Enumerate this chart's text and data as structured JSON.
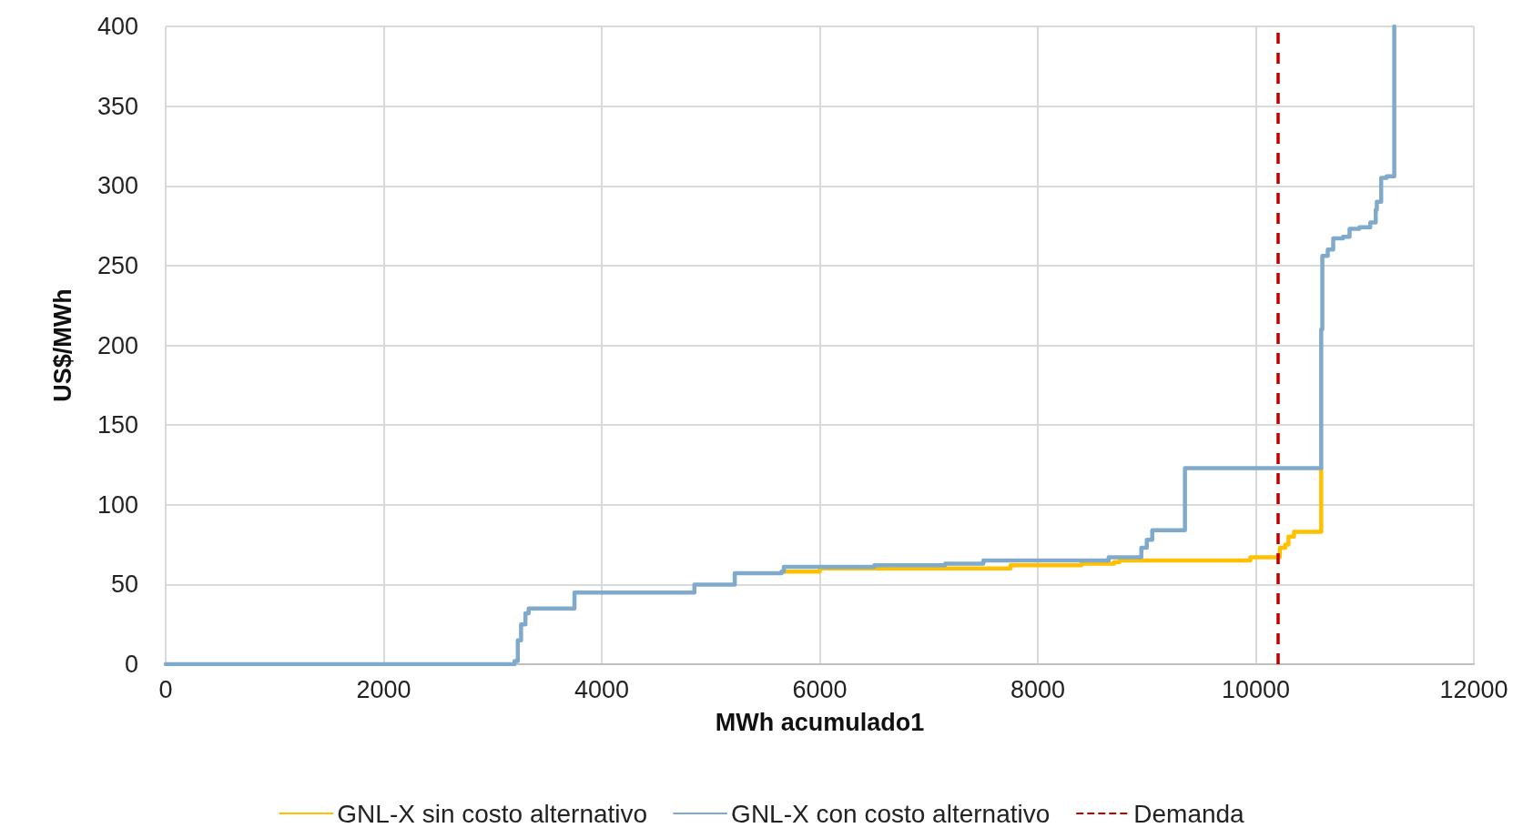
{
  "chart_data": {
    "type": "step",
    "xlabel": "MWh acumulado1",
    "ylabel": "US$/MWh",
    "xlim": [
      0,
      12000
    ],
    "xticks": [
      0,
      2000,
      4000,
      6000,
      8000,
      10000,
      12000
    ],
    "ylim": [
      0,
      400
    ],
    "yticks": [
      0,
      50,
      100,
      150,
      200,
      250,
      300,
      350,
      400
    ],
    "grid": true,
    "legend": "bottom",
    "line_style": "solid",
    "marker": "none",
    "series": [
      {
        "name": "GNL-X sin costo alternativo",
        "color": "#ffc000",
        "x": [
          5650,
          6000,
          7750,
          8400,
          8700,
          8750,
          9950,
          10220,
          10270,
          10300,
          10350,
          10600,
          10600
        ],
        "values": [
          58,
          60,
          62,
          63,
          64,
          65,
          67,
          73,
          75,
          80,
          83,
          84,
          123
        ]
      },
      {
        "name": "GNL-X con costo alternativo",
        "color": "#7faacb",
        "x": [
          0,
          3150,
          3200,
          3230,
          3260,
          3300,
          3330,
          3750,
          3750,
          4450,
          4850,
          5200,
          5220,
          5650,
          5670,
          6500,
          7150,
          7500,
          8600,
          8650,
          8930,
          8950,
          9000,
          9050,
          9350,
          9350,
          10600,
          10600,
          10610,
          10660,
          10700,
          10710,
          10800,
          10850,
          10860,
          10950,
          11050,
          11100,
          11110,
          11150,
          11150,
          11200,
          11270,
          11270
        ],
        "values": [
          0,
          0,
          2,
          15,
          25,
          32,
          35,
          36,
          45,
          45,
          50,
          50,
          57,
          58,
          61,
          62,
          63,
          65,
          65,
          67,
          67,
          73,
          78,
          84,
          85,
          123,
          123,
          210,
          256,
          260,
          260,
          267,
          268,
          268,
          273,
          274,
          277,
          285,
          290,
          294,
          305,
          306,
          340,
          400
        ]
      }
    ],
    "ref_lines": [
      {
        "axis": "x",
        "value": 10200,
        "label": "Demanda",
        "color": "#c00000",
        "line_style": "dashed"
      }
    ]
  }
}
